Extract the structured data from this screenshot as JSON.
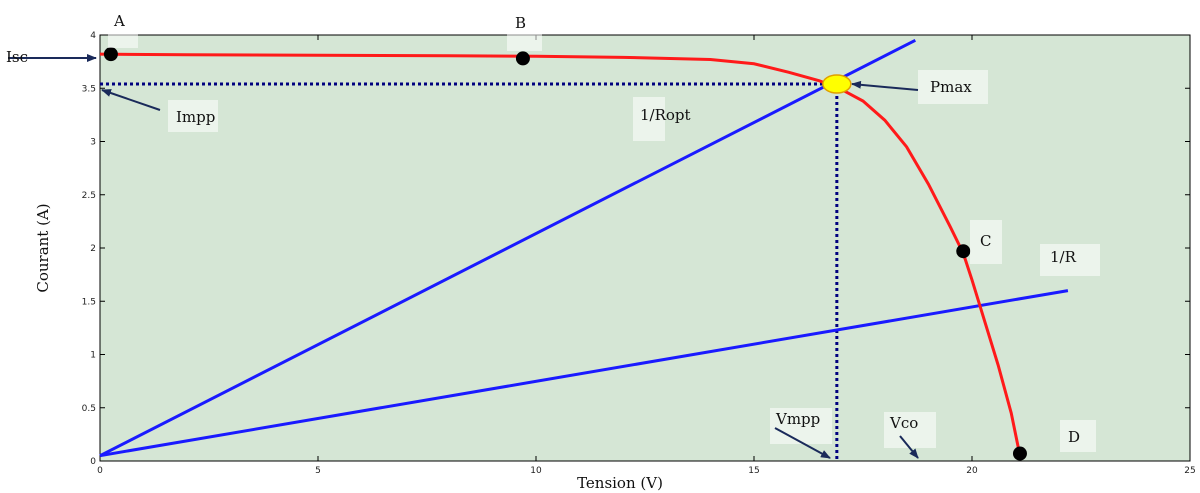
{
  "chart_data": {
    "type": "line",
    "xlabel": "Tension (V)",
    "ylabel": "Courant (A)",
    "xlim": [
      0,
      25
    ],
    "ylim": [
      0,
      4
    ],
    "x_ticks": [
      0,
      5,
      10,
      15,
      20,
      25
    ],
    "y_ticks": [
      0,
      0.5,
      1,
      1.5,
      2,
      2.5,
      3,
      3.5,
      4
    ],
    "x_tick_labels": [
      "0",
      "5",
      "10",
      "15",
      "20",
      "25"
    ],
    "y_tick_labels": [
      "0",
      "0.5",
      "1",
      "1.5",
      "2",
      "2.5",
      "3",
      "3.5",
      "4"
    ],
    "grid": false,
    "background": "#d5e6d5",
    "colors": {
      "iv_curve": "#ff1a1a",
      "load_lines": "#1a1aff",
      "dotted_lines": "#00007f",
      "points": "#000000",
      "pmax_point": "#ffff00",
      "arrows": "#1a2a5a"
    },
    "series": [
      {
        "key": "iv_curve",
        "x": [
          0,
          2,
          5,
          8,
          10,
          12,
          14,
          15,
          15.8,
          16.5,
          17,
          17.5,
          18,
          18.5,
          19,
          19.5,
          19.8,
          20,
          20.3,
          20.6,
          20.9,
          21.1
        ],
        "y": [
          3.82,
          3.815,
          3.81,
          3.805,
          3.8,
          3.79,
          3.77,
          3.73,
          3.65,
          3.57,
          3.49,
          3.38,
          3.2,
          2.95,
          2.6,
          2.2,
          1.95,
          1.7,
          1.3,
          0.9,
          0.45,
          0.05
        ]
      },
      {
        "key": "load_line_opt",
        "name": "1/Ropt",
        "x": [
          0,
          18.7
        ],
        "y": [
          0.05,
          3.95
        ]
      },
      {
        "key": "load_line_r",
        "name": "1/R",
        "x": [
          0,
          22.2
        ],
        "y": [
          0.05,
          1.6
        ]
      }
    ],
    "points": [
      {
        "label": "A",
        "x": 0.25,
        "y": 3.82
      },
      {
        "label": "B",
        "x": 9.7,
        "y": 3.78
      },
      {
        "label": "C",
        "x": 19.8,
        "y": 1.97
      },
      {
        "label": "D",
        "x": 21.1,
        "y": 0.07
      }
    ],
    "mpp": {
      "label": "Pmax",
      "x": 16.9,
      "y": 3.54
    },
    "annotations": [
      {
        "key": "A",
        "text": "A"
      },
      {
        "key": "B",
        "text": "B"
      },
      {
        "key": "C",
        "text": "C"
      },
      {
        "key": "D",
        "text": "D"
      },
      {
        "key": "Isc",
        "text": "Isc"
      },
      {
        "key": "Impp",
        "text": "Impp"
      },
      {
        "key": "Ropt",
        "text": "1/Ropt"
      },
      {
        "key": "R",
        "text": "1/R"
      },
      {
        "key": "Pmax",
        "text": "Pmax"
      },
      {
        "key": "Vmpp",
        "text": "Vmpp"
      },
      {
        "key": "Vco",
        "text": "Vco"
      }
    ]
  }
}
